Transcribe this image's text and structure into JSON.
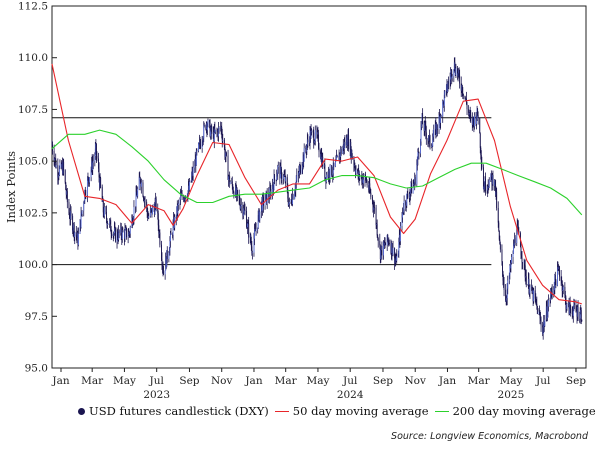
{
  "chart_data": {
    "type": "candlestick",
    "ylabel": "Index Points",
    "ylim": [
      95.0,
      112.5
    ],
    "y_ticks": [
      "95.0",
      "97.5",
      "100.0",
      "102.5",
      "105.0",
      "107.5",
      "110.0",
      "112.5"
    ],
    "x_range": [
      "2022-12-15",
      "2025-09-20"
    ],
    "x_ticks": [
      {
        "date": "2023-01-01",
        "label": "Jan"
      },
      {
        "date": "2023-03-01",
        "label": "Mar"
      },
      {
        "date": "2023-05-01",
        "label": "May"
      },
      {
        "date": "2023-07-01",
        "label": "Jul"
      },
      {
        "date": "2023-09-01",
        "label": "Sep"
      },
      {
        "date": "2023-11-01",
        "label": "Nov"
      },
      {
        "date": "2024-01-01",
        "label": "Jan"
      },
      {
        "date": "2024-03-01",
        "label": "Mar"
      },
      {
        "date": "2024-05-01",
        "label": "May"
      },
      {
        "date": "2024-07-01",
        "label": "Jul"
      },
      {
        "date": "2024-09-01",
        "label": "Sep"
      },
      {
        "date": "2024-11-01",
        "label": "Nov"
      },
      {
        "date": "2025-01-01",
        "label": "Jan"
      },
      {
        "date": "2025-03-01",
        "label": "Mar"
      },
      {
        "date": "2025-05-01",
        "label": "May"
      },
      {
        "date": "2025-07-01",
        "label": "Jul"
      },
      {
        "date": "2025-09-01",
        "label": "Sep"
      }
    ],
    "year_labels": [
      {
        "date": "2023-07-01",
        "label": "2023"
      },
      {
        "date": "2024-07-01",
        "label": "2024"
      },
      {
        "date": "2025-05-01",
        "label": "2025"
      }
    ],
    "horizontal_lines": [
      {
        "y": 107.1,
        "x_start": "2022-12-15",
        "x_end": "2025-03-25",
        "color": "#111111"
      },
      {
        "y": 100.0,
        "x_start": "2022-12-15",
        "x_end": "2025-03-25",
        "color": "#111111"
      }
    ],
    "series": [
      {
        "name": "USD futures candlestick (DXY)",
        "kind": "candlestick",
        "color": "#1a1550",
        "points": [
          {
            "date": "2022-12-15",
            "value": 105.8
          },
          {
            "date": "2022-12-25",
            "value": 104.5
          },
          {
            "date": "2023-01-05",
            "value": 104.7
          },
          {
            "date": "2023-01-15",
            "value": 102.6
          },
          {
            "date": "2023-01-27",
            "value": 101.6
          },
          {
            "date": "2023-02-02",
            "value": 101.2
          },
          {
            "date": "2023-02-15",
            "value": 103.5
          },
          {
            "date": "2023-03-08",
            "value": 105.5
          },
          {
            "date": "2023-03-22",
            "value": 102.6
          },
          {
            "date": "2023-04-05",
            "value": 101.8
          },
          {
            "date": "2023-04-14",
            "value": 101.4
          },
          {
            "date": "2023-04-25",
            "value": 101.5
          },
          {
            "date": "2023-05-10",
            "value": 101.5
          },
          {
            "date": "2023-05-31",
            "value": 104.2
          },
          {
            "date": "2023-06-15",
            "value": 102.3
          },
          {
            "date": "2023-06-30",
            "value": 102.9
          },
          {
            "date": "2023-07-14",
            "value": 99.6
          },
          {
            "date": "2023-07-31",
            "value": 101.7
          },
          {
            "date": "2023-08-15",
            "value": 103.2
          },
          {
            "date": "2023-08-31",
            "value": 103.6
          },
          {
            "date": "2023-09-15",
            "value": 105.3
          },
          {
            "date": "2023-10-03",
            "value": 106.9
          },
          {
            "date": "2023-10-15",
            "value": 106.2
          },
          {
            "date": "2023-10-31",
            "value": 106.6
          },
          {
            "date": "2023-11-15",
            "value": 104.1
          },
          {
            "date": "2023-11-30",
            "value": 103.3
          },
          {
            "date": "2023-12-15",
            "value": 102.5
          },
          {
            "date": "2023-12-28",
            "value": 100.8
          },
          {
            "date": "2024-01-15",
            "value": 102.9
          },
          {
            "date": "2024-01-31",
            "value": 103.4
          },
          {
            "date": "2024-02-15",
            "value": 104.6
          },
          {
            "date": "2024-02-29",
            "value": 104.1
          },
          {
            "date": "2024-03-08",
            "value": 102.8
          },
          {
            "date": "2024-03-20",
            "value": 103.9
          },
          {
            "date": "2024-04-16",
            "value": 106.3
          },
          {
            "date": "2024-04-30",
            "value": 106.1
          },
          {
            "date": "2024-05-15",
            "value": 104.3
          },
          {
            "date": "2024-05-31",
            "value": 104.6
          },
          {
            "date": "2024-06-14",
            "value": 105.5
          },
          {
            "date": "2024-06-26",
            "value": 106.1
          },
          {
            "date": "2024-07-15",
            "value": 104.3
          },
          {
            "date": "2024-07-31",
            "value": 104.1
          },
          {
            "date": "2024-08-15",
            "value": 102.8
          },
          {
            "date": "2024-08-27",
            "value": 100.6
          },
          {
            "date": "2024-09-12",
            "value": 101.2
          },
          {
            "date": "2024-09-27",
            "value": 100.1
          },
          {
            "date": "2024-10-10",
            "value": 102.9
          },
          {
            "date": "2024-10-31",
            "value": 104.0
          },
          {
            "date": "2024-11-14",
            "value": 106.9
          },
          {
            "date": "2024-11-30",
            "value": 105.8
          },
          {
            "date": "2024-12-15",
            "value": 106.9
          },
          {
            "date": "2024-12-31",
            "value": 108.5
          },
          {
            "date": "2025-01-13",
            "value": 109.7
          },
          {
            "date": "2025-01-31",
            "value": 108.4
          },
          {
            "date": "2025-02-15",
            "value": 106.8
          },
          {
            "date": "2025-02-28",
            "value": 107.3
          },
          {
            "date": "2025-03-10",
            "value": 103.8
          },
          {
            "date": "2025-03-31",
            "value": 104.2
          },
          {
            "date": "2025-04-10",
            "value": 100.8
          },
          {
            "date": "2025-04-21",
            "value": 98.3
          },
          {
            "date": "2025-05-12",
            "value": 101.8
          },
          {
            "date": "2025-05-31",
            "value": 99.2
          },
          {
            "date": "2025-06-15",
            "value": 98.3
          },
          {
            "date": "2025-06-30",
            "value": 96.9
          },
          {
            "date": "2025-07-15",
            "value": 98.5
          },
          {
            "date": "2025-07-31",
            "value": 99.8
          },
          {
            "date": "2025-08-15",
            "value": 97.9
          },
          {
            "date": "2025-08-31",
            "value": 97.8
          },
          {
            "date": "2025-09-12",
            "value": 97.6
          }
        ]
      },
      {
        "name": "50 day moving average",
        "kind": "line",
        "color": "#e8262a",
        "points": [
          {
            "date": "2022-12-15",
            "value": 109.7
          },
          {
            "date": "2023-01-15",
            "value": 106.0
          },
          {
            "date": "2023-02-15",
            "value": 103.3
          },
          {
            "date": "2023-03-15",
            "value": 103.2
          },
          {
            "date": "2023-04-15",
            "value": 102.9
          },
          {
            "date": "2023-05-15",
            "value": 102.0
          },
          {
            "date": "2023-06-15",
            "value": 102.9
          },
          {
            "date": "2023-07-15",
            "value": 102.6
          },
          {
            "date": "2023-08-01",
            "value": 101.9
          },
          {
            "date": "2023-08-20",
            "value": 102.7
          },
          {
            "date": "2023-09-15",
            "value": 104.3
          },
          {
            "date": "2023-10-15",
            "value": 105.9
          },
          {
            "date": "2023-11-15",
            "value": 105.8
          },
          {
            "date": "2023-12-15",
            "value": 104.2
          },
          {
            "date": "2024-01-15",
            "value": 102.9
          },
          {
            "date": "2024-02-15",
            "value": 103.6
          },
          {
            "date": "2024-03-15",
            "value": 103.9
          },
          {
            "date": "2024-04-15",
            "value": 103.9
          },
          {
            "date": "2024-05-15",
            "value": 105.1
          },
          {
            "date": "2024-06-15",
            "value": 105.0
          },
          {
            "date": "2024-07-15",
            "value": 105.2
          },
          {
            "date": "2024-08-15",
            "value": 104.3
          },
          {
            "date": "2024-09-15",
            "value": 102.3
          },
          {
            "date": "2024-10-10",
            "value": 101.5
          },
          {
            "date": "2024-11-01",
            "value": 102.2
          },
          {
            "date": "2024-11-30",
            "value": 104.4
          },
          {
            "date": "2024-12-31",
            "value": 106.0
          },
          {
            "date": "2025-01-31",
            "value": 107.9
          },
          {
            "date": "2025-02-28",
            "value": 108.0
          },
          {
            "date": "2025-03-31",
            "value": 106.0
          },
          {
            "date": "2025-04-30",
            "value": 102.8
          },
          {
            "date": "2025-05-31",
            "value": 100.2
          },
          {
            "date": "2025-06-30",
            "value": 99.0
          },
          {
            "date": "2025-07-31",
            "value": 98.3
          },
          {
            "date": "2025-08-31",
            "value": 98.2
          },
          {
            "date": "2025-09-12",
            "value": 98.1
          }
        ]
      },
      {
        "name": "200 day moving average",
        "kind": "line",
        "color": "#2cd12c",
        "points": [
          {
            "date": "2022-12-15",
            "value": 105.6
          },
          {
            "date": "2023-01-15",
            "value": 106.3
          },
          {
            "date": "2023-02-15",
            "value": 106.3
          },
          {
            "date": "2023-03-15",
            "value": 106.5
          },
          {
            "date": "2023-04-15",
            "value": 106.3
          },
          {
            "date": "2023-05-15",
            "value": 105.7
          },
          {
            "date": "2023-06-15",
            "value": 105.0
          },
          {
            "date": "2023-07-15",
            "value": 104.1
          },
          {
            "date": "2023-08-15",
            "value": 103.4
          },
          {
            "date": "2023-09-15",
            "value": 103.0
          },
          {
            "date": "2023-10-15",
            "value": 103.0
          },
          {
            "date": "2023-11-15",
            "value": 103.3
          },
          {
            "date": "2023-12-15",
            "value": 103.4
          },
          {
            "date": "2024-01-15",
            "value": 103.4
          },
          {
            "date": "2024-02-15",
            "value": 103.5
          },
          {
            "date": "2024-03-15",
            "value": 103.6
          },
          {
            "date": "2024-04-15",
            "value": 103.7
          },
          {
            "date": "2024-05-15",
            "value": 104.1
          },
          {
            "date": "2024-06-15",
            "value": 104.3
          },
          {
            "date": "2024-07-15",
            "value": 104.3
          },
          {
            "date": "2024-08-15",
            "value": 104.2
          },
          {
            "date": "2024-09-15",
            "value": 103.9
          },
          {
            "date": "2024-10-15",
            "value": 103.7
          },
          {
            "date": "2024-11-15",
            "value": 103.8
          },
          {
            "date": "2024-12-15",
            "value": 104.2
          },
          {
            "date": "2025-01-15",
            "value": 104.6
          },
          {
            "date": "2025-02-15",
            "value": 104.9
          },
          {
            "date": "2025-03-15",
            "value": 104.9
          },
          {
            "date": "2025-04-15",
            "value": 104.6
          },
          {
            "date": "2025-05-15",
            "value": 104.3
          },
          {
            "date": "2025-06-15",
            "value": 104.0
          },
          {
            "date": "2025-07-15",
            "value": 103.7
          },
          {
            "date": "2025-08-15",
            "value": 103.2
          },
          {
            "date": "2025-09-12",
            "value": 102.4
          }
        ]
      }
    ],
    "legend": {
      "placement": "bottom",
      "items": [
        {
          "label": "USD futures candlestick (DXY)",
          "color": "#1a1550"
        },
        {
          "label": "50 day moving average",
          "color": "#e8262a"
        },
        {
          "label": "200 day moving average",
          "color": "#2cd12c"
        }
      ]
    },
    "source": "Source: Longview Economics, Macrobond",
    "grid": false
  }
}
